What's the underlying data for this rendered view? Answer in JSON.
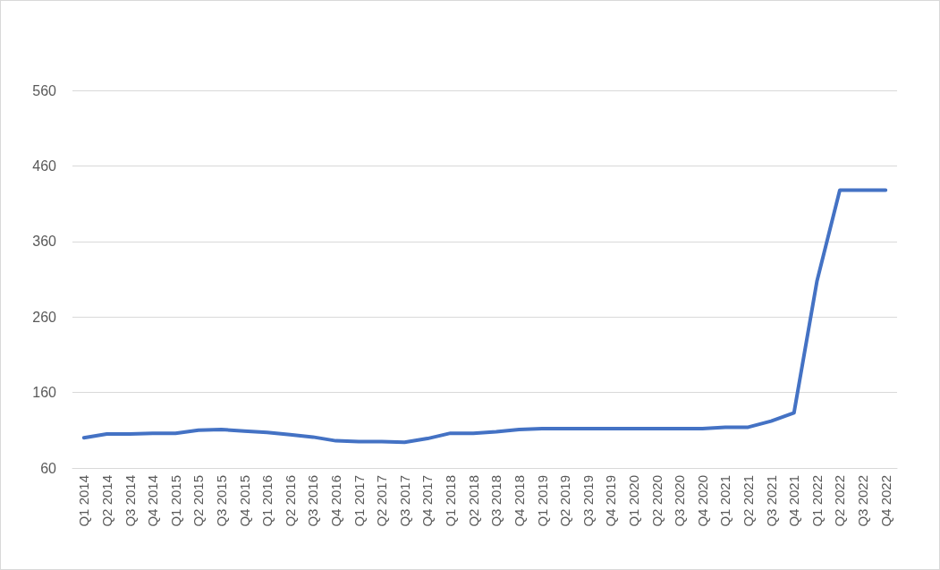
{
  "chart_data": {
    "type": "line",
    "categories": [
      "Q1 2014",
      "Q2 2014",
      "Q3 2014",
      "Q4 2014",
      "Q1 2015",
      "Q2 2015",
      "Q3 2015",
      "Q4 2015",
      "Q1 2016",
      "Q2 2016",
      "Q3 2016",
      "Q4 2016",
      "Q1 2017",
      "Q2 2017",
      "Q3 2017",
      "Q4 2017",
      "Q1 2018",
      "Q2 2018",
      "Q3 2018",
      "Q4 2018",
      "Q1 2019",
      "Q2 2019",
      "Q3 2019",
      "Q4 2019",
      "Q1 2020",
      "Q2 2020",
      "Q3 2020",
      "Q4 2020",
      "Q1 2021",
      "Q2 2021",
      "Q3 2021",
      "Q4 2021",
      "Q1 2022",
      "Q2 2022",
      "Q3 2022",
      "Q4 2022"
    ],
    "values": [
      100,
      105,
      105,
      106,
      106,
      110,
      111,
      109,
      107,
      104,
      101,
      96,
      95,
      95,
      94,
      99,
      106,
      106,
      108,
      111,
      112,
      112,
      112,
      112,
      112,
      112,
      112,
      112,
      114,
      114,
      122,
      133,
      307,
      428,
      428,
      428
    ],
    "color": "#4472c4",
    "ylim": [
      60,
      560
    ],
    "yticks": [
      60,
      160,
      260,
      360,
      460,
      560
    ],
    "grid": "y",
    "marker": "none",
    "line_style": "solid"
  }
}
